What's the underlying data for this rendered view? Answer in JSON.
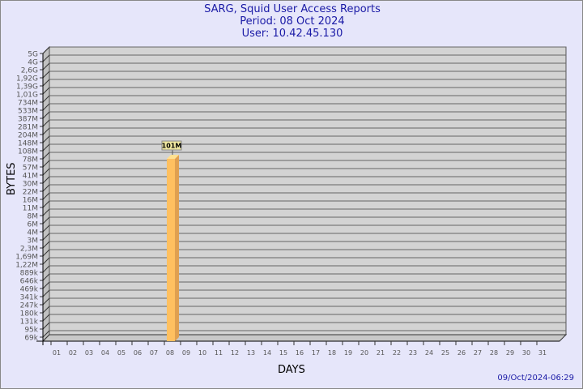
{
  "chart_data": {
    "type": "bar",
    "title": "SARG, Squid User Access Reports",
    "subtitle": [
      "Period: 08 Oct 2024",
      "User: 10.42.45.130"
    ],
    "xlabel": "DAYS",
    "ylabel": "BYTES",
    "categories": [
      "01",
      "02",
      "03",
      "04",
      "05",
      "06",
      "07",
      "08",
      "09",
      "10",
      "11",
      "12",
      "13",
      "14",
      "15",
      "16",
      "17",
      "18",
      "19",
      "20",
      "21",
      "22",
      "23",
      "24",
      "25",
      "26",
      "27",
      "28",
      "29",
      "30",
      "31"
    ],
    "values": [
      null,
      null,
      null,
      null,
      null,
      null,
      null,
      101000000,
      null,
      null,
      null,
      null,
      null,
      null,
      null,
      null,
      null,
      null,
      null,
      null,
      null,
      null,
      null,
      null,
      null,
      null,
      null,
      null,
      null,
      null,
      null
    ],
    "data_labels": {
      "08": "101M"
    },
    "y_scale": "log",
    "y_ticks": [
      "5G",
      "4G",
      "2,6G",
      "1,92G",
      "1,39G",
      "1,01G",
      "734M",
      "533M",
      "387M",
      "281M",
      "204M",
      "148M",
      "108M",
      "78M",
      "57M",
      "41M",
      "30M",
      "22M",
      "16M",
      "11M",
      "8M",
      "6M",
      "4M",
      "3M",
      "2,3M",
      "1,69M",
      "1,22M",
      "889k",
      "646k",
      "469k",
      "341k",
      "247k",
      "180k",
      "131k",
      "95k",
      "69k"
    ],
    "grid": true,
    "bar_color": "#ffc060"
  },
  "footer": "09/Oct/2024-06:29"
}
